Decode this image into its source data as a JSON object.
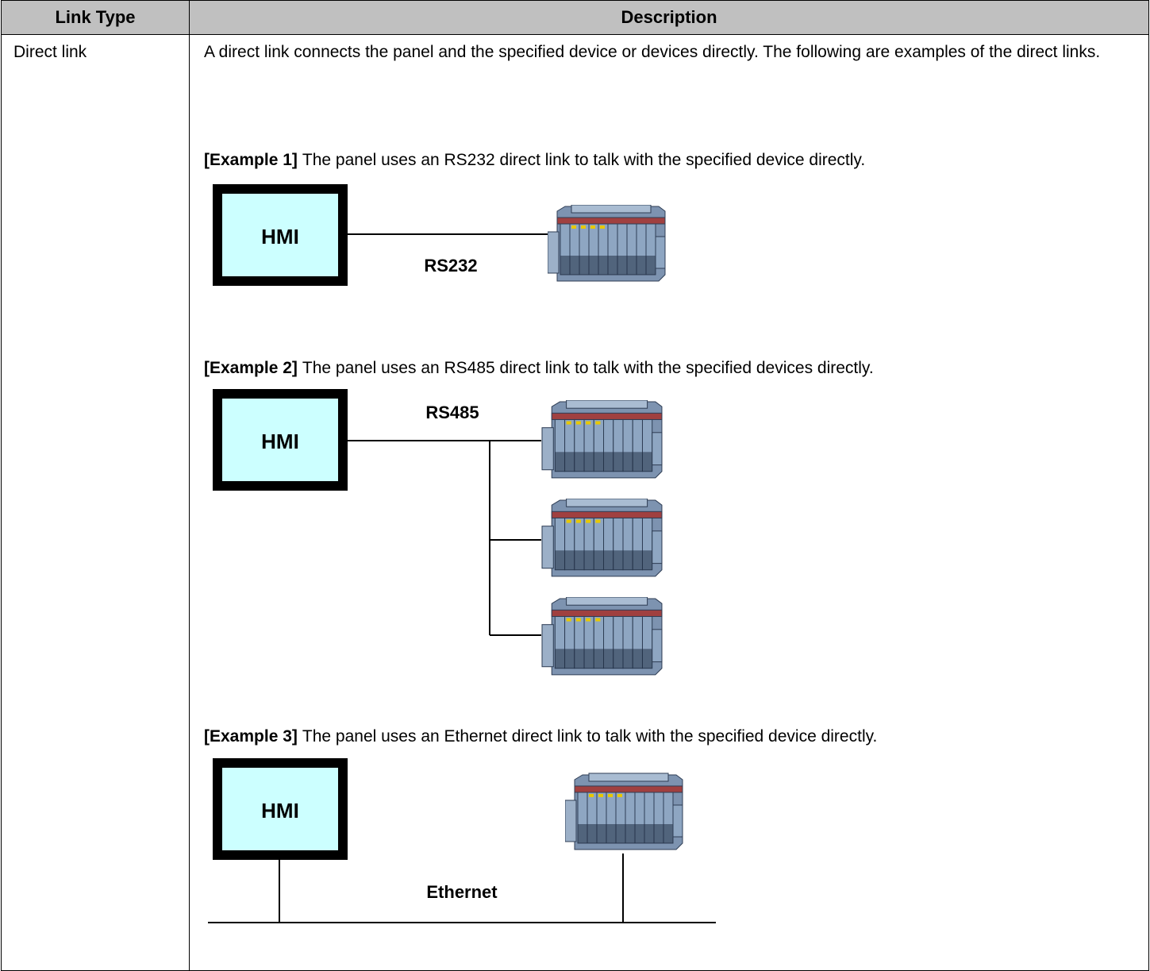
{
  "table": {
    "headers": [
      "Link Type",
      "Description"
    ],
    "rows": [
      {
        "link_type": "Direct link",
        "intro": "A direct link connects the panel and the specified device or devices directly. The following are examples of the direct links.",
        "examples": [
          {
            "label": "[Example 1]",
            "text": "The panel uses an RS232 direct link to talk with the specified device directly.",
            "panel": "HMI",
            "link": "RS232"
          },
          {
            "label": "[Example 2]",
            "text": "The panel uses an RS485 direct link to talk with the specified devices directly.",
            "panel": "HMI",
            "link": "RS485"
          },
          {
            "label": "[Example 3]",
            "text": "The panel uses an Ethernet direct link to talk with the specified device directly.",
            "panel": "HMI",
            "link": "Ethernet"
          }
        ]
      }
    ]
  }
}
